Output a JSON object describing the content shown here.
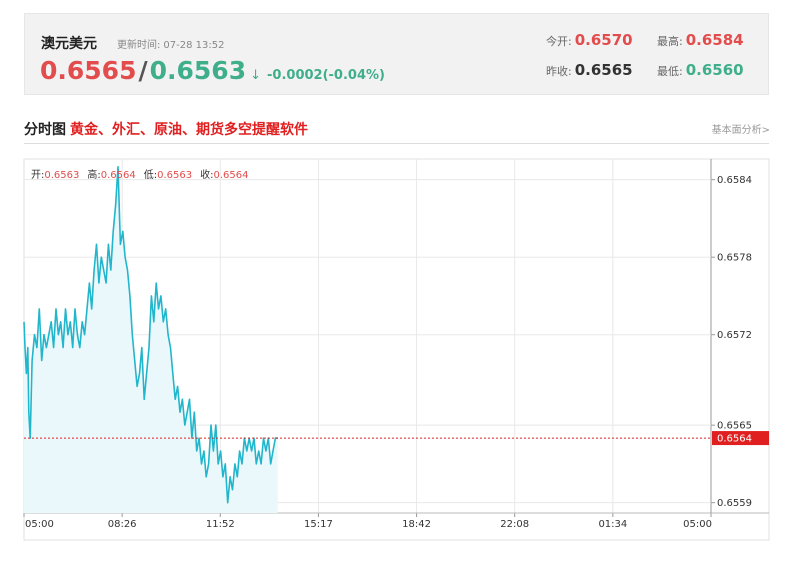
{
  "header": {
    "pair_name": "澳元美元",
    "update_label": "更新时间:",
    "update_time": "07-28 13:52",
    "bid": "0.6565",
    "separator": "/",
    "ask": "0.6563",
    "arrow": "↓",
    "change": "-0.0002(-0.04%)",
    "open_label": "今开:",
    "open_value": "0.6570",
    "high_label": "最高:",
    "high_value": "0.6584",
    "prev_close_label": "昨收:",
    "prev_close_value": "0.6565",
    "low_label": "最低:",
    "low_value": "0.6560"
  },
  "section": {
    "title": "分时图",
    "promo_link": "黄金、外汇、原油、期货多空提醒软件",
    "analysis_link": "基本面分析>"
  },
  "ohlc": {
    "open_label": "开:",
    "open": "0.6563",
    "high_label": "高:",
    "high": "0.6564",
    "low_label": "低:",
    "low": "0.6563",
    "close_label": "收:",
    "close": "0.6564"
  },
  "colors": {
    "up": "#e34c4c",
    "down": "#3fae8a",
    "line": "#22b6cc",
    "fill": "#eaf8fb",
    "current_marker": "#e02020",
    "grid": "#e8e8e8"
  },
  "chart_data": {
    "type": "area",
    "x_ticks": [
      "05:00",
      "08:26",
      "11:52",
      "15:17",
      "18:42",
      "22:08",
      "01:34",
      "05:00"
    ],
    "y_ticks": [
      0.6584,
      0.6578,
      0.6572,
      0.6565,
      0.6559
    ],
    "current_value": 0.6564,
    "current_label": "0.6564",
    "ylim": [
      0.65582,
      0.65856
    ],
    "x_unit": "minutes since 05:00",
    "x_max_minutes": 1440,
    "series": [
      {
        "x": [
          0,
          2,
          5,
          8,
          10,
          13,
          17,
          22,
          27,
          32,
          37,
          42,
          47,
          52,
          57,
          62,
          67,
          72,
          77,
          82,
          87,
          92,
          97,
          102,
          107,
          112,
          117,
          122,
          127,
          132,
          137,
          142,
          147,
          152,
          157,
          162,
          167,
          172,
          177,
          182,
          187,
          192,
          197,
          202,
          207,
          212,
          217,
          222,
          227,
          232,
          237,
          242,
          247,
          252,
          257,
          262,
          267,
          272,
          277,
          282,
          287,
          292,
          297,
          302,
          307,
          312,
          317,
          322,
          327,
          332,
          337,
          342,
          347,
          352,
          357,
          362,
          367,
          372,
          377,
          382,
          387,
          392,
          397,
          402,
          407,
          412,
          417,
          422,
          427,
          432,
          437,
          442,
          447,
          452,
          457,
          462,
          467,
          472,
          477,
          482,
          487,
          492,
          497,
          502,
          507,
          512,
          517,
          522,
          527,
          532
        ],
        "values": [
          0.6573,
          0.6571,
          0.6569,
          0.6571,
          0.6566,
          0.6564,
          0.657,
          0.6572,
          0.6571,
          0.6574,
          0.657,
          0.6572,
          0.6571,
          0.6572,
          0.6573,
          0.6571,
          0.6574,
          0.6572,
          0.6573,
          0.6571,
          0.6574,
          0.6572,
          0.6573,
          0.6571,
          0.6574,
          0.6572,
          0.6571,
          0.6573,
          0.6572,
          0.6574,
          0.6576,
          0.6574,
          0.6577,
          0.6579,
          0.6576,
          0.6578,
          0.6577,
          0.6576,
          0.6579,
          0.6577,
          0.658,
          0.6582,
          0.6585,
          0.6579,
          0.658,
          0.6578,
          0.6577,
          0.6575,
          0.6572,
          0.657,
          0.6568,
          0.6569,
          0.6571,
          0.6567,
          0.6569,
          0.6571,
          0.6575,
          0.6573,
          0.6576,
          0.6574,
          0.6575,
          0.6573,
          0.6574,
          0.6572,
          0.6571,
          0.6569,
          0.6567,
          0.6568,
          0.6566,
          0.6567,
          0.6565,
          0.6566,
          0.6567,
          0.6564,
          0.6566,
          0.6563,
          0.6564,
          0.6562,
          0.6563,
          0.6561,
          0.6562,
          0.6565,
          0.6563,
          0.6565,
          0.6562,
          0.6563,
          0.6561,
          0.6562,
          0.6559,
          0.6561,
          0.656,
          0.6562,
          0.6561,
          0.6563,
          0.6562,
          0.6564,
          0.6563,
          0.6564,
          0.6563,
          0.6564,
          0.6562,
          0.6563,
          0.6562,
          0.6564,
          0.6563,
          0.6564,
          0.6562,
          0.6563,
          0.6564,
          0.6564
        ]
      }
    ]
  }
}
